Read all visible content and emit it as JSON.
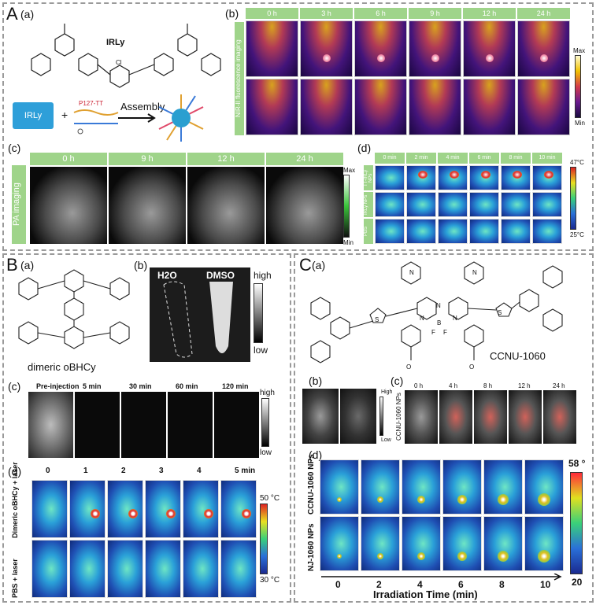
{
  "section_A": {
    "letter": "A",
    "panel_a": {
      "label": "(a)",
      "compound": "IRLy",
      "chlorine": "Cl",
      "box_label": "IRLy",
      "polymer": "P127-TT",
      "arrow_label": "Assembly"
    },
    "panel_b": {
      "label": "(b)",
      "times": [
        "0 h",
        "3 h",
        "6 h",
        "9 h",
        "12 h",
        "24 h"
      ],
      "side_label": "NIR-II fluorescence imaging",
      "scale_max": "Max",
      "scale_min": "Min"
    },
    "panel_c": {
      "label": "(c)",
      "times": [
        "0 h",
        "9 h",
        "12 h",
        "24 h"
      ],
      "side_label": "PA imaging",
      "scale_max": "Max",
      "scale_min": "Min"
    },
    "panel_d": {
      "label": "(d)",
      "times": [
        "0 min",
        "2 min",
        "4 min",
        "6 min",
        "8 min",
        "10 min"
      ],
      "rows": [
        "TT-IRLy NPs",
        "IRLy NPs",
        "PBS"
      ],
      "scale_max": "47°C",
      "scale_min": "25°C"
    }
  },
  "section_B": {
    "letter": "B",
    "panel_a": {
      "label": "(a)",
      "compound": "dimeric oBHCy"
    },
    "panel_b": {
      "label": "(b)",
      "left": "H2O",
      "right": "DMSO",
      "scale_high": "high",
      "scale_low": "low"
    },
    "panel_c": {
      "label": "(c)",
      "times": [
        "Pre-injection",
        "5 min",
        "30 min",
        "60 min",
        "120 min"
      ],
      "scale_high": "high",
      "scale_low": "low"
    },
    "panel_d": {
      "label": "(d)",
      "times": [
        "0",
        "1",
        "2",
        "3",
        "4",
        "5 min"
      ],
      "rows": [
        "Dimeric oBHCy + laser",
        "PBS + laser"
      ],
      "scale_max": "50 °C",
      "scale_min": "30 °C"
    }
  },
  "section_C": {
    "letter": "C",
    "panel_a": {
      "label": "(a)",
      "compound": "CCNU-1060",
      "atoms": [
        "N",
        "N",
        "N",
        "B",
        "F",
        "F",
        "S",
        "S",
        "N",
        "N",
        "O",
        "O"
      ]
    },
    "panel_b": {
      "label": "(b)",
      "scale_high": "High",
      "scale_low": "Low"
    },
    "panel_c": {
      "label": "(c)",
      "times": [
        "0 h",
        "4 h",
        "8 h",
        "12 h",
        "24 h"
      ],
      "side_label": "CCNU-1060 NPs"
    },
    "panel_d": {
      "label": "(d)",
      "rows": [
        "CCNU-1060 NPs",
        "NJ-1060 NPs"
      ],
      "ticks": [
        "0",
        "2",
        "4",
        "6",
        "8",
        "10"
      ],
      "xlabel": "Irradiation Time (min)",
      "scale_max": "58 °",
      "scale_min": "20"
    }
  },
  "colors": {
    "frame": "#9a9a9a",
    "green_header": "#9fd48a",
    "irly_box": "#2e9fd9"
  }
}
